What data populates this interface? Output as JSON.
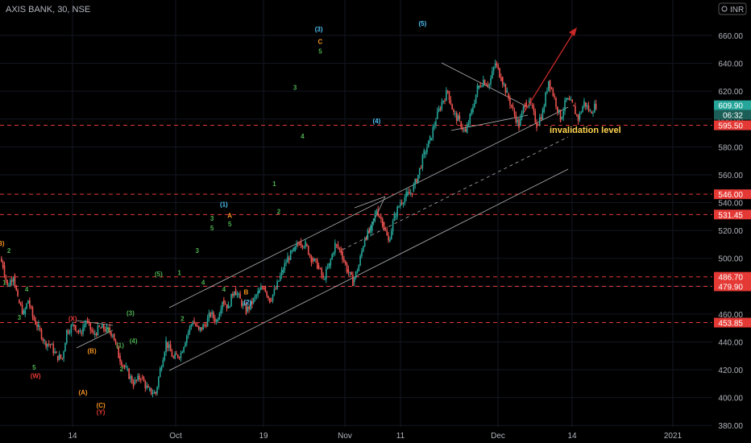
{
  "header": {
    "symbol_line": "AXIS BANK, 30, NSE"
  },
  "currency_badge": {
    "label": "INR",
    "icon": "currency-icon"
  },
  "colors": {
    "background": "#000000",
    "grid": "#131722",
    "axis_text": "#b2b5be",
    "up": "#26a69a",
    "down": "#ef5350",
    "level_line": "#e53935",
    "level_badge": "#e53935",
    "price_badge": "#26a69a",
    "wave_green": "#4caf50",
    "wave_orange": "#f7931e",
    "wave_cyan": "#4fc3f7",
    "wave_red": "#e53935",
    "channel": "#b0b0b0",
    "arrow": "#c62828",
    "invalidation_text": "#ffd54f"
  },
  "price_tags": {
    "last": "609.90",
    "countdown": "06:32"
  },
  "annotation": {
    "invalidation": "invalidation level"
  },
  "chart_data": {
    "type": "candlestick",
    "title": "AXIS BANK, 30, NSE",
    "ylim": [
      375,
      670
    ],
    "y_ticks": [
      380,
      400,
      420,
      440,
      460,
      480,
      500,
      520,
      540,
      560,
      580,
      600,
      620,
      640,
      660
    ],
    "y_tick_labels": [
      "380.00",
      "400.00",
      "420.00",
      "440.00",
      "460.00",
      "480.00",
      "500.00",
      "520.00",
      "540.00",
      "560.00",
      "580.00",
      "600.00",
      "620.00",
      "640.00",
      "660.00"
    ],
    "x_tick_labels": [
      "14",
      "Oct",
      "19",
      "Nov",
      "11",
      "Dec",
      "14",
      "2021"
    ],
    "levels": [
      {
        "value": 595.5,
        "label": "595.50"
      },
      {
        "value": 546.0,
        "label": "546.00"
      },
      {
        "value": 531.45,
        "label": "531.45"
      },
      {
        "value": 486.7,
        "label": "486.70"
      },
      {
        "value": 479.9,
        "label": "479.90"
      },
      {
        "value": 453.85,
        "label": "453.85"
      }
    ],
    "last_price": 609.9,
    "price_path": [
      [
        0,
        500
      ],
      [
        2,
        495
      ],
      [
        5,
        480
      ],
      [
        9,
        488
      ],
      [
        12,
        470
      ],
      [
        16,
        460
      ],
      [
        19,
        470
      ],
      [
        22,
        458
      ],
      [
        26,
        450
      ],
      [
        30,
        440
      ],
      [
        34,
        438
      ],
      [
        38,
        430
      ],
      [
        42,
        428
      ],
      [
        45,
        448
      ],
      [
        50,
        452
      ],
      [
        54,
        446
      ],
      [
        58,
        455
      ],
      [
        63,
        445
      ],
      [
        67,
        450
      ],
      [
        72,
        449
      ],
      [
        76,
        446
      ],
      [
        80,
        430
      ],
      [
        85,
        420
      ],
      [
        90,
        410
      ],
      [
        95,
        415
      ],
      [
        100,
        405
      ],
      [
        105,
        403
      ],
      [
        108,
        420
      ],
      [
        112,
        440
      ],
      [
        117,
        428
      ],
      [
        122,
        432
      ],
      [
        126,
        445
      ],
      [
        130,
        455
      ],
      [
        134,
        448
      ],
      [
        138,
        452
      ],
      [
        142,
        460
      ],
      [
        146,
        455
      ],
      [
        150,
        470
      ],
      [
        154,
        465
      ],
      [
        158,
        478
      ],
      [
        162,
        470
      ],
      [
        166,
        462
      ],
      [
        170,
        468
      ],
      [
        174,
        475
      ],
      [
        178,
        480
      ],
      [
        182,
        470
      ],
      [
        186,
        478
      ],
      [
        190,
        490
      ],
      [
        194,
        500
      ],
      [
        198,
        505
      ],
      [
        202,
        512
      ],
      [
        206,
        510
      ],
      [
        210,
        500
      ],
      [
        214,
        495
      ],
      [
        218,
        485
      ],
      [
        222,
        495
      ],
      [
        226,
        510
      ],
      [
        230,
        505
      ],
      [
        234,
        492
      ],
      [
        238,
        483
      ],
      [
        242,
        495
      ],
      [
        246,
        515
      ],
      [
        250,
        520
      ],
      [
        254,
        535
      ],
      [
        258,
        526
      ],
      [
        262,
        512
      ],
      [
        266,
        530
      ],
      [
        270,
        540
      ],
      [
        274,
        545
      ],
      [
        278,
        548
      ],
      [
        282,
        560
      ],
      [
        286,
        575
      ],
      [
        290,
        585
      ],
      [
        294,
        600
      ],
      [
        298,
        612
      ],
      [
        302,
        620
      ],
      [
        306,
        604
      ],
      [
        310,
        598
      ],
      [
        314,
        590
      ],
      [
        318,
        605
      ],
      [
        322,
        622
      ],
      [
        326,
        628
      ],
      [
        330,
        625
      ],
      [
        334,
        640
      ],
      [
        338,
        630
      ],
      [
        342,
        618
      ],
      [
        346,
        606
      ],
      [
        350,
        595
      ],
      [
        354,
        612
      ],
      [
        358,
        610
      ],
      [
        362,
        596
      ],
      [
        366,
        605
      ],
      [
        370,
        628
      ],
      [
        374,
        615
      ],
      [
        378,
        600
      ],
      [
        382,
        614
      ],
      [
        386,
        610
      ],
      [
        390,
        600
      ],
      [
        394,
        612
      ],
      [
        398,
        605
      ],
      [
        402,
        610
      ]
    ],
    "wave_labels": [
      {
        "text": "(B)",
        "color": "orange",
        "x": 0,
        "y": 509
      },
      {
        "text": "2",
        "color": "green",
        "x": 6,
        "y": 504
      },
      {
        "text": "1",
        "color": "green",
        "x": 3,
        "y": 481
      },
      {
        "text": "4",
        "color": "green",
        "x": 18,
        "y": 476
      },
      {
        "text": "3",
        "color": "green",
        "x": 13,
        "y": 456
      },
      {
        "text": "5",
        "color": "green",
        "x": 23,
        "y": 420
      },
      {
        "text": "(W)",
        "color": "red",
        "x": 24,
        "y": 414
      },
      {
        "text": "(X)",
        "color": "red",
        "x": 49,
        "y": 455
      },
      {
        "text": "(B)",
        "color": "orange",
        "x": 62,
        "y": 432
      },
      {
        "text": "(A)",
        "color": "orange",
        "x": 56,
        "y": 402
      },
      {
        "text": "(C)",
        "color": "orange",
        "x": 68,
        "y": 393
      },
      {
        "text": "(Y)",
        "color": "red",
        "x": 68,
        "y": 388
      },
      {
        "text": "(1)",
        "color": "green",
        "x": 81,
        "y": 436
      },
      {
        "text": "2",
        "color": "green",
        "x": 82,
        "y": 419
      },
      {
        "text": "1",
        "color": "green",
        "x": 73,
        "y": 447
      },
      {
        "text": "(4)",
        "color": "green",
        "x": 90,
        "y": 439
      },
      {
        "text": "(3)",
        "color": "green",
        "x": 88,
        "y": 459
      },
      {
        "text": "(5)",
        "color": "green",
        "x": 107,
        "y": 487
      },
      {
        "text": "1",
        "color": "green",
        "x": 121,
        "y": 488
      },
      {
        "text": "2",
        "color": "green",
        "x": 123,
        "y": 455
      },
      {
        "text": "3",
        "color": "green",
        "x": 133,
        "y": 504
      },
      {
        "text": "4",
        "color": "green",
        "x": 137,
        "y": 481
      },
      {
        "text": "5",
        "color": "green",
        "x": 143,
        "y": 520
      },
      {
        "text": "3",
        "color": "green",
        "x": 143,
        "y": 527
      },
      {
        "text": "(1)",
        "color": "cyan",
        "x": 151,
        "y": 537
      },
      {
        "text": "A",
        "color": "orange",
        "x": 155,
        "y": 529
      },
      {
        "text": "5",
        "color": "green",
        "x": 155,
        "y": 523
      },
      {
        "text": "4",
        "color": "green",
        "x": 151,
        "y": 476
      },
      {
        "text": "B",
        "color": "orange",
        "x": 166,
        "y": 474
      },
      {
        "text": "(2)",
        "color": "cyan",
        "x": 167,
        "y": 467
      },
      {
        "text": "1",
        "color": "green",
        "x": 185,
        "y": 552
      },
      {
        "text": "2",
        "color": "green",
        "x": 188,
        "y": 532
      },
      {
        "text": "3",
        "color": "green",
        "x": 199,
        "y": 621
      },
      {
        "text": "4",
        "color": "green",
        "x": 204,
        "y": 586
      },
      {
        "text": "(3)",
        "color": "cyan",
        "x": 215,
        "y": 663
      },
      {
        "text": "C",
        "color": "orange",
        "x": 216,
        "y": 654
      },
      {
        "text": "5",
        "color": "green",
        "x": 216,
        "y": 647
      },
      {
        "text": "(4)",
        "color": "cyan",
        "x": 254,
        "y": 597
      },
      {
        "text": "(5)",
        "color": "cyan",
        "x": 285,
        "y": 667
      }
    ]
  }
}
